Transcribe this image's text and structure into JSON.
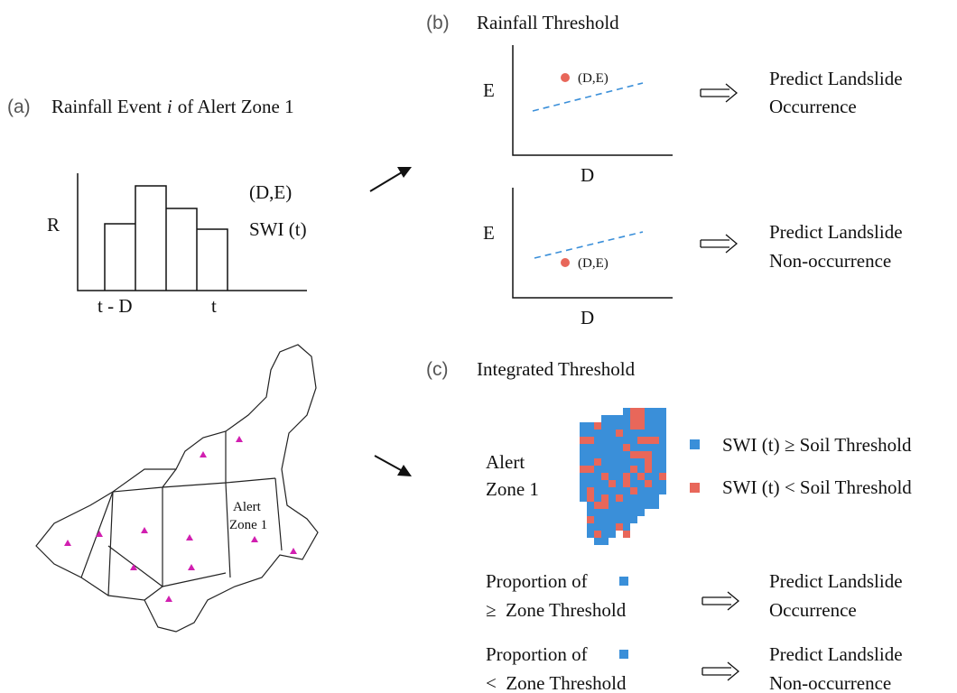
{
  "panel_a": {
    "label": "(a)",
    "title_before": "Rainfall Event",
    "title_italic": "i",
    "title_after": "of Alert Zone 1",
    "y_axis": "R",
    "labels": [
      "(D,E)",
      "SWI (t)"
    ],
    "x_labels": [
      "t - D",
      "t"
    ],
    "map_zone_label": [
      "Alert",
      "Zone 1"
    ]
  },
  "panel_b": {
    "label": "(b)",
    "title": "Rainfall Threshold",
    "plots": [
      {
        "y_axis": "E",
        "x_axis": "D",
        "point_label": "(D,E)",
        "result": [
          "Predict Landslide",
          "Occurrence"
        ]
      },
      {
        "y_axis": "E",
        "x_axis": "D",
        "point_label": "(D,E)",
        "result": [
          "Predict Landslide",
          "Non-occurrence"
        ]
      }
    ]
  },
  "panel_c": {
    "label": "(c)",
    "title": "Integrated Threshold",
    "zone_label": [
      "Alert",
      "Zone 1"
    ],
    "legend": [
      "SWI (t) ≥ Soil Threshold",
      "SWI (t) < Soil Threshold"
    ],
    "rules": [
      {
        "condition": [
          "Proportion of",
          "≥  Zone Threshold"
        ],
        "result": [
          "Predict Landslide",
          "Occurrence"
        ]
      },
      {
        "condition": [
          "Proportion of",
          "<  Zone Threshold"
        ],
        "result": [
          "Predict Landslide",
          "Non-occurrence"
        ]
      }
    ]
  }
}
